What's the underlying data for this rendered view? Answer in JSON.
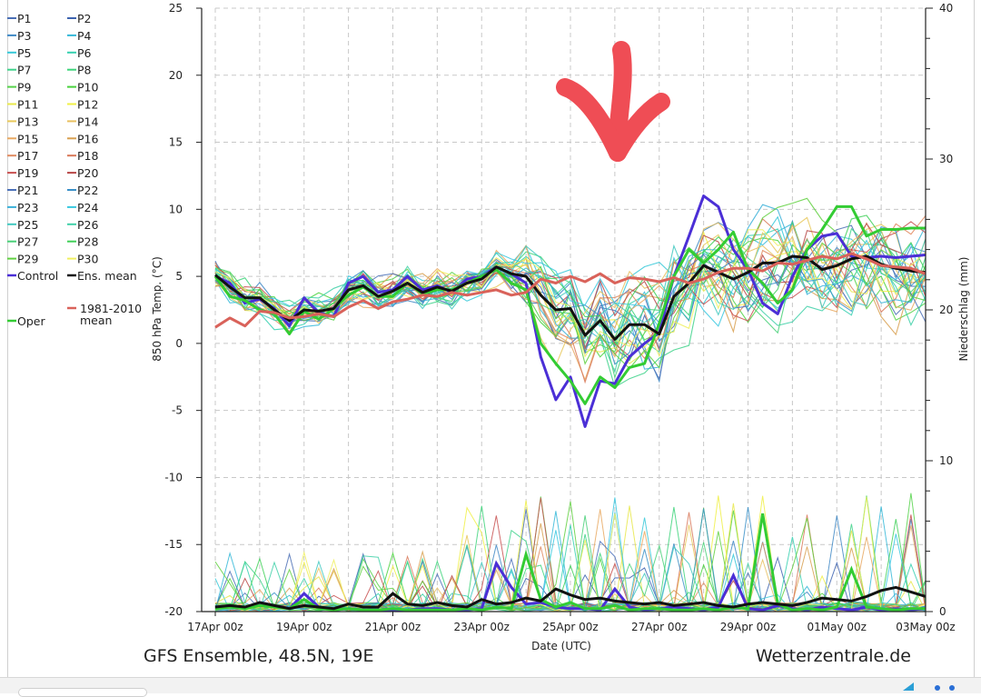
{
  "chart_data": {
    "type": "line",
    "title": "GFS Ensemble, 48.5N, 19E",
    "source": "Wetterzentrale.de",
    "xlabel": "Date (UTC)",
    "ylabel_left": "850 hPa Temp. (°C)",
    "ylabel_right": "Niederschlag (mm)",
    "ylim_left": [
      -20,
      25
    ],
    "ylim_right": [
      0,
      40
    ],
    "grid": true,
    "legend_position": "left",
    "x_tick_labels": [
      "17Apr 00z",
      "19Apr 00z",
      "21Apr 00z",
      "23Apr 00z",
      "25Apr 00z",
      "27Apr 00z",
      "29Apr 00z",
      "01May 00z",
      "03May 00z"
    ],
    "y_tick_labels_left": [
      "25",
      "20",
      "15",
      "10",
      "5",
      "0",
      "-5",
      "-10",
      "-15",
      "-20"
    ],
    "y_tick_labels_right": [
      "40",
      "30",
      "20",
      "10",
      "0"
    ],
    "legend": [
      {
        "name": "P1",
        "color": "#4a6fb5"
      },
      {
        "name": "P2",
        "color": "#3d63b0"
      },
      {
        "name": "P3",
        "color": "#3f88c5"
      },
      {
        "name": "P4",
        "color": "#35b8d8"
      },
      {
        "name": "P5",
        "color": "#35c8d8"
      },
      {
        "name": "P6",
        "color": "#36d0b0"
      },
      {
        "name": "P7",
        "color": "#3ed28a"
      },
      {
        "name": "P8",
        "color": "#3dd47a"
      },
      {
        "name": "P9",
        "color": "#55d24a"
      },
      {
        "name": "P10",
        "color": "#48d23c"
      },
      {
        "name": "P11",
        "color": "#e8e84a"
      },
      {
        "name": "P12",
        "color": "#f0f045"
      },
      {
        "name": "P13",
        "color": "#e8c85a"
      },
      {
        "name": "P14",
        "color": "#e8c060"
      },
      {
        "name": "P15",
        "color": "#e8a860"
      },
      {
        "name": "P16",
        "color": "#d8a050"
      },
      {
        "name": "P17",
        "color": "#e08a60"
      },
      {
        "name": "P18",
        "color": "#d87858"
      },
      {
        "name": "P19",
        "color": "#c85050"
      },
      {
        "name": "P20",
        "color": "#b84848"
      },
      {
        "name": "P21",
        "color": "#4a70b8"
      },
      {
        "name": "P22",
        "color": "#3a90c8"
      },
      {
        "name": "P23",
        "color": "#3ab0d8"
      },
      {
        "name": "P24",
        "color": "#38c8e0"
      },
      {
        "name": "P25",
        "color": "#40c8c0"
      },
      {
        "name": "P26",
        "color": "#40d0a8"
      },
      {
        "name": "P27",
        "color": "#48d078"
      },
      {
        "name": "P28",
        "color": "#40d058"
      },
      {
        "name": "P29",
        "color": "#60d040"
      },
      {
        "name": "P30",
        "color": "#f0f060"
      },
      {
        "name": "Control",
        "color": "#4b2fd6"
      },
      {
        "name": "Ens. mean",
        "color": "#111111"
      },
      {
        "name": "1981-2010 mean",
        "color": "#d9625a"
      },
      {
        "name": "Oper",
        "color": "#33cc33"
      }
    ],
    "series": [
      {
        "name": "Control",
        "color": "#4b2fd6",
        "axis": "left",
        "x": [
          0,
          0.33,
          0.67,
          1,
          1.33,
          1.67,
          2,
          2.33,
          2.67,
          3,
          3.33,
          3.67,
          4,
          4.33,
          4.67,
          5,
          5.33,
          5.67,
          6,
          6.33,
          6.67,
          7,
          7.33,
          7.67,
          8,
          8.33,
          8.67,
          9,
          9.33,
          9.67,
          10,
          10.33,
          10.67,
          11,
          11.33,
          11.67,
          12,
          12.33,
          12.67,
          13,
          13.33,
          13.67,
          14,
          14.33,
          14.67,
          15,
          15.33,
          15.67,
          16
        ],
        "y": [
          5,
          4.5,
          3,
          3.3,
          2.6,
          1.3,
          3.4,
          2.3,
          2,
          4.5,
          5,
          3.8,
          4,
          5,
          4,
          4.3,
          3.8,
          4.8,
          5,
          5.7,
          5.2,
          4.5,
          -1,
          -4.2,
          -2.5,
          -6.2,
          -2.8,
          -3,
          -1,
          0,
          0.8,
          5,
          8,
          11,
          10.2,
          7,
          5.5,
          3,
          2.2,
          5,
          7,
          8,
          8.2,
          6.5,
          6.4,
          6.5,
          6.4,
          6.5,
          6.6
        ],
        "precip": [
          0.3,
          0.4,
          0.2,
          0.6,
          0.4,
          0.2,
          1.2,
          0.3,
          0.1,
          0.2,
          0.1,
          0.1,
          0.1,
          0.1,
          0.2,
          0.2,
          0.1,
          0.1,
          0.2,
          3.2,
          1.6,
          0.5,
          0.6,
          0.3,
          0.2,
          0.2,
          0.1,
          1.5,
          0.3,
          0.1,
          0.2,
          0.3,
          0.2,
          0.1,
          0.3,
          2.4,
          0.2,
          0.1,
          0.4,
          0.2,
          0.1,
          0.3,
          0.2,
          0.1,
          0.3,
          0.1,
          0.2,
          0.1,
          0.2
        ]
      },
      {
        "name": "Oper",
        "color": "#33cc33",
        "axis": "left",
        "x": [
          0,
          0.33,
          0.67,
          1,
          1.33,
          1.67,
          2,
          2.33,
          2.67,
          3,
          3.33,
          3.67,
          4,
          4.33,
          4.67,
          5,
          5.33,
          5.67,
          6,
          6.33,
          6.67,
          7,
          7.33,
          7.67,
          8,
          8.33,
          8.67,
          9,
          9.33,
          9.67,
          10,
          10.33,
          10.67,
          11,
          11.33,
          11.67,
          12,
          12.33,
          12.67,
          13,
          13.33,
          13.67,
          14,
          14.33,
          14.67,
          15,
          15.33,
          15.67,
          16
        ],
        "y": [
          5,
          3.5,
          3.2,
          2.5,
          2.2,
          0.7,
          2.4,
          1.8,
          2.6,
          3.6,
          4.2,
          3.5,
          3.5,
          4.5,
          3.7,
          4,
          4,
          4.5,
          5,
          5.5,
          4.5,
          4,
          0,
          -1.5,
          -2.8,
          -4.5,
          -2.5,
          -3.3,
          -1.8,
          -1.5,
          1.5,
          5,
          7,
          6,
          7,
          8.3,
          5.5,
          4.5,
          3,
          4,
          7,
          8.5,
          10.2,
          10.2,
          8,
          8.5,
          8.5,
          8.6,
          8.6
        ],
        "precip": [
          0.2,
          0.3,
          0.2,
          0.4,
          0.3,
          0.2,
          0.8,
          0.2,
          0.1,
          0.2,
          0.1,
          0.1,
          0.2,
          0.1,
          0.1,
          0.1,
          0.1,
          0.2,
          0.1,
          0.3,
          0.2,
          3.8,
          0.8,
          0.3,
          0.6,
          0.2,
          0.2,
          0.4,
          0.1,
          0.2,
          0.2,
          0.1,
          0.1,
          0.2,
          0.1,
          0.3,
          0.2,
          6.5,
          0.5,
          0.1,
          0.2,
          0.1,
          0.3,
          2.8,
          0.3,
          0.2,
          0.1,
          0.2,
          0.2
        ]
      },
      {
        "name": "Ens. mean",
        "color": "#111111",
        "axis": "left",
        "x": [
          0,
          0.33,
          0.67,
          1,
          1.33,
          1.67,
          2,
          2.33,
          2.67,
          3,
          3.33,
          3.67,
          4,
          4.33,
          4.67,
          5,
          5.33,
          5.67,
          6,
          6.33,
          6.67,
          7,
          7.33,
          7.67,
          8,
          8.33,
          8.67,
          9,
          9.33,
          9.67,
          10,
          10.33,
          10.67,
          11,
          11.33,
          11.67,
          12,
          12.33,
          12.67,
          13,
          13.33,
          13.67,
          14,
          14.33,
          14.67,
          15,
          15.33,
          15.67,
          16
        ],
        "y": [
          5.1,
          4.2,
          3.4,
          3.4,
          2.5,
          1.7,
          2.5,
          2.4,
          2.6,
          4,
          4.3,
          3.5,
          3.9,
          4.5,
          3.8,
          4.2,
          3.9,
          4.5,
          4.8,
          5.7,
          5.2,
          5,
          3.6,
          2.5,
          2.6,
          0.6,
          1.7,
          0.3,
          1.4,
          1.4,
          0.7,
          3.5,
          4.5,
          5.8,
          5.3,
          4.8,
          5.3,
          6,
          6,
          6.5,
          6.4,
          5.5,
          5.8,
          6.3,
          6.5,
          5.9,
          5.6,
          5.4,
          5.3
        ],
        "precip": [
          0.3,
          0.4,
          0.3,
          0.6,
          0.4,
          0.2,
          0.4,
          0.3,
          0.2,
          0.5,
          0.3,
          0.3,
          1.2,
          0.5,
          0.4,
          0.6,
          0.4,
          0.3,
          0.8,
          0.5,
          0.6,
          0.9,
          0.7,
          1.5,
          1.1,
          0.8,
          0.9,
          0.7,
          0.6,
          0.5,
          0.6,
          0.4,
          0.5,
          0.6,
          0.4,
          0.3,
          0.5,
          0.6,
          0.5,
          0.4,
          0.6,
          0.9,
          0.8,
          0.7,
          1.0,
          1.4,
          1.6,
          1.3,
          1.0
        ]
      },
      {
        "name": "1981-2010 mean",
        "color": "#d9625a",
        "axis": "left",
        "x": [
          0,
          0.33,
          0.67,
          1,
          1.33,
          1.67,
          2,
          2.33,
          2.67,
          3,
          3.33,
          3.67,
          4,
          4.33,
          4.67,
          5,
          5.33,
          5.67,
          6,
          6.33,
          6.67,
          7,
          7.33,
          7.67,
          8,
          8.33,
          8.67,
          9,
          9.33,
          9.67,
          10,
          10.33,
          10.67,
          11,
          11.33,
          11.67,
          12,
          12.33,
          12.67,
          13,
          13.33,
          13.67,
          14,
          14.33,
          14.67,
          15,
          15.33,
          15.67,
          16
        ],
        "y": [
          1.2,
          1.9,
          1.3,
          2.4,
          2.3,
          1.9,
          2.0,
          2.2,
          2.0,
          2.7,
          3.2,
          2.6,
          3.1,
          3.3,
          3.6,
          3.5,
          3.8,
          3.6,
          3.8,
          4.0,
          3.6,
          3.8,
          4.8,
          4.5,
          5.0,
          4.6,
          5.2,
          4.5,
          4.9,
          4.8,
          4.6,
          4.9,
          4.5,
          4.8,
          5.3,
          5.6,
          5.6,
          5.4,
          6.0,
          5.9,
          6.2,
          6.5,
          6.3,
          6.7,
          6.3,
          5.8,
          5.7,
          5.6,
          5.2
        ],
        "precip": []
      }
    ],
    "annotation": {
      "type": "arrow",
      "color": "#ef4d55",
      "points_to": "26Apr"
    }
  }
}
